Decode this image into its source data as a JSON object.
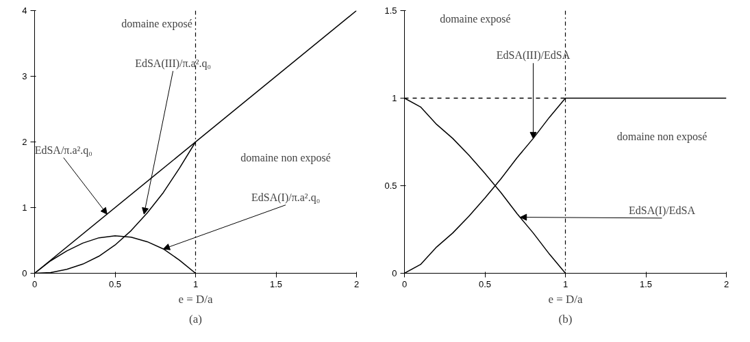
{
  "chart_data": [
    {
      "type": "line",
      "title": "(a)",
      "xlabel": "e = D/a",
      "xlim": [
        0,
        2
      ],
      "ylim": [
        0,
        4
      ],
      "xticks": [
        0,
        0.5,
        1,
        1.5,
        2
      ],
      "yticks": [
        0,
        1,
        2,
        3,
        4
      ],
      "grid": false,
      "series": [
        {
          "color": "#000000",
          "x": [
            0,
            2
          ],
          "values": [
            0,
            4
          ]
        },
        {
          "color": "#000000",
          "x": [
            0,
            0.1,
            0.2,
            0.3,
            0.4,
            0.5,
            0.6,
            0.7,
            0.8,
            0.9,
            1.0
          ],
          "values": [
            0,
            0.01,
            0.06,
            0.14,
            0.26,
            0.43,
            0.65,
            0.92,
            1.23,
            1.6,
            2
          ]
        },
        {
          "color": "#000000",
          "x": [
            0,
            0.1,
            0.2,
            0.3,
            0.4,
            0.5,
            0.6,
            0.7,
            0.8,
            0.9,
            1.0
          ],
          "values": [
            0,
            0.19,
            0.34,
            0.46,
            0.54,
            0.57,
            0.55,
            0.48,
            0.37,
            0.2,
            0
          ]
        }
      ],
      "ref_lines": [
        {
          "axis": "x",
          "value": 1,
          "color": "#000000",
          "line_style": "dashdot"
        }
      ],
      "annotations": [
        {
          "text": "EdSA/π.a².q₀",
          "x": 0.45,
          "y": 0.9
        },
        {
          "text": "EdSA(III)/π.a².q₀",
          "x": 0.68,
          "y": 0.9
        },
        {
          "text": "EdSA(I)/π.a².q₀",
          "x": 0.8,
          "y": 0.37
        },
        "domaine exposé",
        "domaine non exposé"
      ]
    },
    {
      "type": "line",
      "title": "(b)",
      "xlabel": "e = D/a",
      "xlim": [
        0,
        2
      ],
      "ylim": [
        0,
        1.5
      ],
      "xticks": [
        0,
        0.5,
        1,
        1.5,
        2
      ],
      "yticks": [
        0,
        0.5,
        1,
        1.5
      ],
      "grid": false,
      "series": [
        {
          "color": "#000000",
          "x": [
            0,
            0.1,
            0.2,
            0.3,
            0.4,
            0.5,
            0.6,
            0.7,
            0.8,
            0.9,
            1.0,
            2.0
          ],
          "values": [
            0,
            0.05,
            0.15,
            0.23,
            0.325,
            0.43,
            0.54,
            0.66,
            0.77,
            0.89,
            1,
            1
          ]
        },
        {
          "color": "#000000",
          "x": [
            0,
            0.1,
            0.2,
            0.3,
            0.4,
            0.5,
            0.6,
            0.7,
            0.8,
            0.9,
            1.0
          ],
          "values": [
            1,
            0.95,
            0.85,
            0.77,
            0.675,
            0.57,
            0.46,
            0.34,
            0.23,
            0.11,
            0
          ]
        },
        {
          "color": "#000000",
          "x": [
            0,
            1
          ],
          "values": [
            1,
            1
          ],
          "line_style": "dashed"
        }
      ],
      "ref_lines": [
        {
          "axis": "x",
          "value": 1,
          "color": "#000000",
          "line_style": "dashdot"
        }
      ],
      "annotations": [
        {
          "text": "EdSA(III)/EdSA",
          "x": 0.8,
          "y": 0.77
        },
        {
          "text": "EdSA(I)/EdSA",
          "x": 0.72,
          "y": 0.32
        },
        "domaine exposé",
        "domaine non exposé"
      ]
    }
  ]
}
